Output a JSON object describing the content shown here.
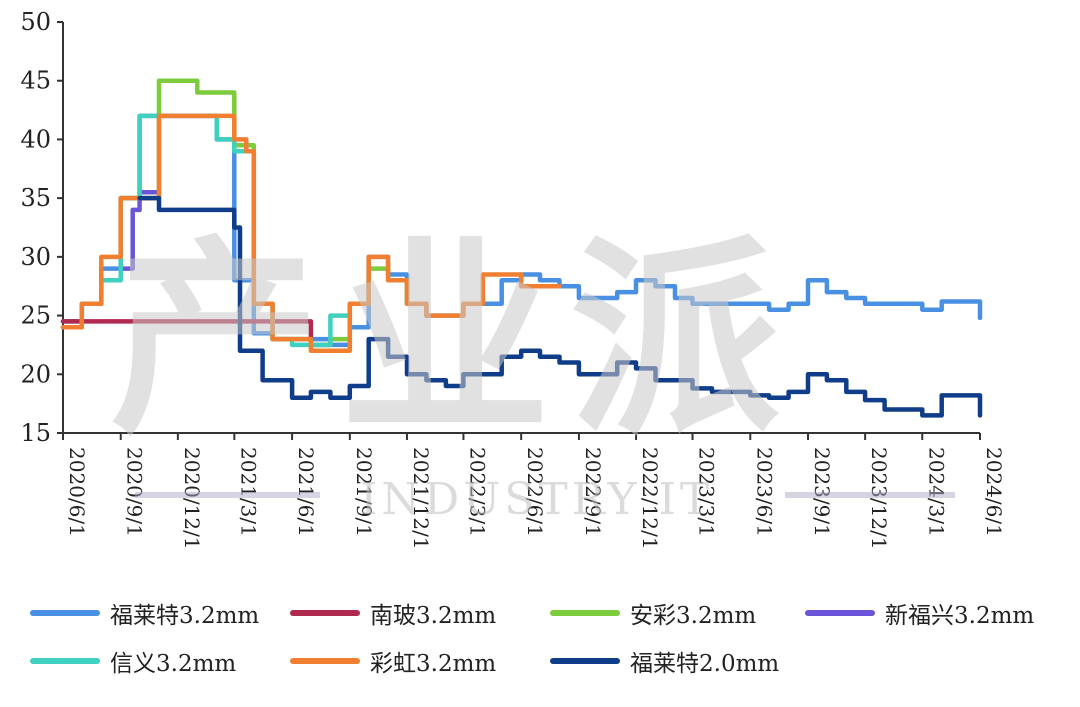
{
  "chart_data": {
    "type": "line",
    "title": "",
    "xlabel": "",
    "ylabel": "",
    "ylim": [
      15,
      50
    ],
    "yticks": [
      15,
      20,
      25,
      30,
      35,
      40,
      45,
      50
    ],
    "xlim": [
      "2020/6/1",
      "2024/6/1"
    ],
    "xticks": [
      "2020/6/1",
      "2020/9/1",
      "2020/12/1",
      "2021/3/1",
      "2021/6/1",
      "2021/9/1",
      "2021/12/1",
      "2022/3/1",
      "2022/6/1",
      "2022/9/1",
      "2022/12/1",
      "2023/3/1",
      "2023/6/1",
      "2023/9/1",
      "2023/12/1",
      "2024/3/1",
      "2024/6/1"
    ],
    "legend_position": "bottom",
    "series": [
      {
        "name": "福莱特3.2mm",
        "color": "#4a90e2",
        "step": true,
        "points": [
          [
            "2020/6/1",
            24.5
          ],
          [
            "2020/7/1",
            26
          ],
          [
            "2020/8/1",
            29
          ],
          [
            "2020/9/1",
            35
          ],
          [
            "2020/10/1",
            42
          ],
          [
            "2020/11/1",
            42
          ],
          [
            "2020/12/1",
            42
          ],
          [
            "2021/1/1",
            42
          ],
          [
            "2021/2/1",
            40
          ],
          [
            "2021/3/1",
            28
          ],
          [
            "2021/4/1",
            23.5
          ],
          [
            "2021/5/1",
            23
          ],
          [
            "2021/6/1",
            23
          ],
          [
            "2021/7/1",
            23
          ],
          [
            "2021/8/1",
            22.5
          ],
          [
            "2021/9/1",
            24
          ],
          [
            "2021/10/1",
            30
          ],
          [
            "2021/11/1",
            28.5
          ],
          [
            "2021/12/1",
            26
          ],
          [
            "2022/1/1",
            25
          ],
          [
            "2022/2/1",
            25
          ],
          [
            "2022/3/1",
            26
          ],
          [
            "2022/4/1",
            26
          ],
          [
            "2022/5/1",
            28
          ],
          [
            "2022/6/1",
            28.5
          ],
          [
            "2022/7/1",
            28
          ],
          [
            "2022/8/1",
            27.5
          ],
          [
            "2022/9/1",
            26.5
          ],
          [
            "2022/10/1",
            26.5
          ],
          [
            "2022/11/1",
            27
          ],
          [
            "2022/12/1",
            28
          ],
          [
            "2023/1/1",
            27.5
          ],
          [
            "2023/2/1",
            26.5
          ],
          [
            "2023/3/1",
            26
          ],
          [
            "2023/4/1",
            26
          ],
          [
            "2023/5/1",
            26
          ],
          [
            "2023/6/1",
            26
          ],
          [
            "2023/7/1",
            25.5
          ],
          [
            "2023/8/1",
            26
          ],
          [
            "2023/9/1",
            28
          ],
          [
            "2023/10/1",
            27
          ],
          [
            "2023/11/1",
            26.5
          ],
          [
            "2023/12/1",
            26
          ],
          [
            "2024/1/1",
            26
          ],
          [
            "2024/2/1",
            26
          ],
          [
            "2024/3/1",
            25.5
          ],
          [
            "2024/4/1",
            26.2
          ],
          [
            "2024/5/1",
            26.2
          ],
          [
            "2024/6/1",
            24.8
          ]
        ]
      },
      {
        "name": "南玻3.2mm",
        "color": "#b0294f",
        "step": true,
        "points": [
          [
            "2020/6/1",
            24.5
          ],
          [
            "2020/7/1",
            24.5
          ],
          [
            "2021/7/1",
            22.5
          ],
          [
            "2021/8/1",
            22.5
          ]
        ]
      },
      {
        "name": "安彩3.2mm",
        "color": "#7dcc3c",
        "step": true,
        "points": [
          [
            "2020/9/1",
            35
          ],
          [
            "2020/10/15",
            35
          ],
          [
            "2020/11/1",
            45
          ],
          [
            "2020/12/1",
            45
          ],
          [
            "2021/1/1",
            44
          ],
          [
            "2021/2/1",
            44
          ],
          [
            "2021/3/1",
            39.5
          ],
          [
            "2021/4/1",
            26
          ],
          [
            "2021/5/1",
            23
          ],
          [
            "2021/6/1",
            23
          ],
          [
            "2021/7/1",
            22.5
          ],
          [
            "2021/8/1",
            23
          ],
          [
            "2021/9/1",
            26
          ],
          [
            "2021/10/1",
            29
          ],
          [
            "2021/11/1",
            28
          ],
          [
            "2021/12/1",
            26
          ]
        ]
      },
      {
        "name": "新福兴3.2mm",
        "color": "#6b55d6",
        "step": true,
        "points": [
          [
            "2020/9/1",
            29
          ],
          [
            "2020/9/20",
            34
          ],
          [
            "2020/10/1",
            35.5
          ],
          [
            "2020/11/1",
            35.5
          ]
        ]
      },
      {
        "name": "信义3.2mm",
        "color": "#3fd0c0",
        "step": true,
        "points": [
          [
            "2020/6/1",
            24
          ],
          [
            "2020/7/1",
            26
          ],
          [
            "2020/8/1",
            28
          ],
          [
            "2020/9/1",
            35
          ],
          [
            "2020/10/1",
            42
          ],
          [
            "2020/11/1",
            42
          ],
          [
            "2020/12/1",
            42
          ],
          [
            "2021/1/1",
            42
          ],
          [
            "2021/2/1",
            40
          ],
          [
            "2021/3/1",
            39
          ],
          [
            "2021/4/1",
            26
          ],
          [
            "2021/5/1",
            23
          ],
          [
            "2021/6/1",
            22.5
          ],
          [
            "2021/7/1",
            22.5
          ],
          [
            "2021/8/1",
            25
          ],
          [
            "2021/9/1",
            26
          ],
          [
            "2021/10/1",
            28.5
          ]
        ]
      },
      {
        "name": "彩虹3.2mm",
        "color": "#f07f32",
        "step": true,
        "points": [
          [
            "2020/6/1",
            24
          ],
          [
            "2020/7/1",
            26
          ],
          [
            "2020/8/1",
            30
          ],
          [
            "2020/9/1",
            35
          ],
          [
            "2020/10/1",
            35
          ],
          [
            "2020/11/1",
            42
          ],
          [
            "2020/12/1",
            42
          ],
          [
            "2021/1/1",
            42
          ],
          [
            "2021/2/1",
            42
          ],
          [
            "2021/3/1",
            40
          ],
          [
            "2021/3/20",
            39
          ],
          [
            "2021/4/1",
            26
          ],
          [
            "2021/5/1",
            23
          ],
          [
            "2021/6/1",
            23
          ],
          [
            "2021/7/1",
            22
          ],
          [
            "2021/8/1",
            22
          ],
          [
            "2021/9/1",
            26
          ],
          [
            "2021/10/1",
            30
          ],
          [
            "2021/11/1",
            28
          ],
          [
            "2021/12/1",
            26
          ],
          [
            "2022/1/1",
            25
          ],
          [
            "2022/2/1",
            25
          ],
          [
            "2022/3/1",
            26
          ],
          [
            "2022/4/1",
            28.5
          ],
          [
            "2022/5/1",
            28.5
          ],
          [
            "2022/6/1",
            27.5
          ],
          [
            "2022/7/1",
            27.5
          ],
          [
            "2022/8/1",
            27.5
          ]
        ]
      },
      {
        "name": "福莱特2.0mm",
        "color": "#0f3d8a",
        "step": true,
        "points": [
          [
            "2020/10/1",
            35
          ],
          [
            "2020/11/1",
            34
          ],
          [
            "2020/12/1",
            34
          ],
          [
            "2021/1/1",
            34
          ],
          [
            "2021/2/1",
            34
          ],
          [
            "2021/3/1",
            32.5
          ],
          [
            "2021/3/10",
            22
          ],
          [
            "2021/4/1",
            22
          ],
          [
            "2021/4/15",
            19.5
          ],
          [
            "2021/5/1",
            19.5
          ],
          [
            "2021/6/1",
            18
          ],
          [
            "2021/7/1",
            18.5
          ],
          [
            "2021/8/1",
            18
          ],
          [
            "2021/9/1",
            19
          ],
          [
            "2021/10/1",
            23
          ],
          [
            "2021/11/1",
            21.5
          ],
          [
            "2021/12/1",
            20
          ],
          [
            "2022/1/1",
            19.5
          ],
          [
            "2022/2/1",
            19
          ],
          [
            "2022/3/1",
            20
          ],
          [
            "2022/4/1",
            20
          ],
          [
            "2022/5/1",
            21.5
          ],
          [
            "2022/6/1",
            22
          ],
          [
            "2022/7/1",
            21.5
          ],
          [
            "2022/8/1",
            21
          ],
          [
            "2022/9/1",
            20
          ],
          [
            "2022/10/1",
            20
          ],
          [
            "2022/11/1",
            21
          ],
          [
            "2022/12/1",
            20.5
          ],
          [
            "2023/1/1",
            19.5
          ],
          [
            "2023/2/1",
            19.5
          ],
          [
            "2023/3/1",
            18.8
          ],
          [
            "2023/4/1",
            18.5
          ],
          [
            "2023/5/1",
            18.5
          ],
          [
            "2023/6/1",
            18.2
          ],
          [
            "2023/7/1",
            18
          ],
          [
            "2023/8/1",
            18.5
          ],
          [
            "2023/9/1",
            20
          ],
          [
            "2023/10/1",
            19.5
          ],
          [
            "2023/11/1",
            18.5
          ],
          [
            "2023/12/1",
            17.8
          ],
          [
            "2024/1/1",
            17
          ],
          [
            "2024/2/1",
            17
          ],
          [
            "2024/3/1",
            16.5
          ],
          [
            "2024/4/1",
            18.2
          ],
          [
            "2024/5/1",
            18.2
          ],
          [
            "2024/6/1",
            16.5
          ]
        ]
      }
    ]
  },
  "watermark": {
    "main": "产业派",
    "sub": "INDUSTRY IT"
  }
}
